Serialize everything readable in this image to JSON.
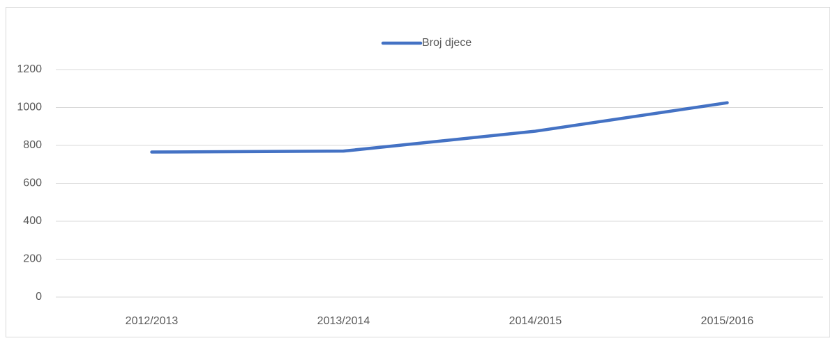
{
  "chart_data": {
    "type": "line",
    "categories": [
      "2012/2013",
      "2013/2014",
      "2014/2015",
      "2015/2016"
    ],
    "series": [
      {
        "name": "Broj djece",
        "color": "#4472c4",
        "values": [
          765,
          770,
          875,
          1025
        ]
      }
    ],
    "ylim": [
      0,
      1200
    ],
    "yticks": [
      0,
      200,
      400,
      600,
      800,
      1000,
      1200
    ],
    "grid": true,
    "legend": "top"
  }
}
